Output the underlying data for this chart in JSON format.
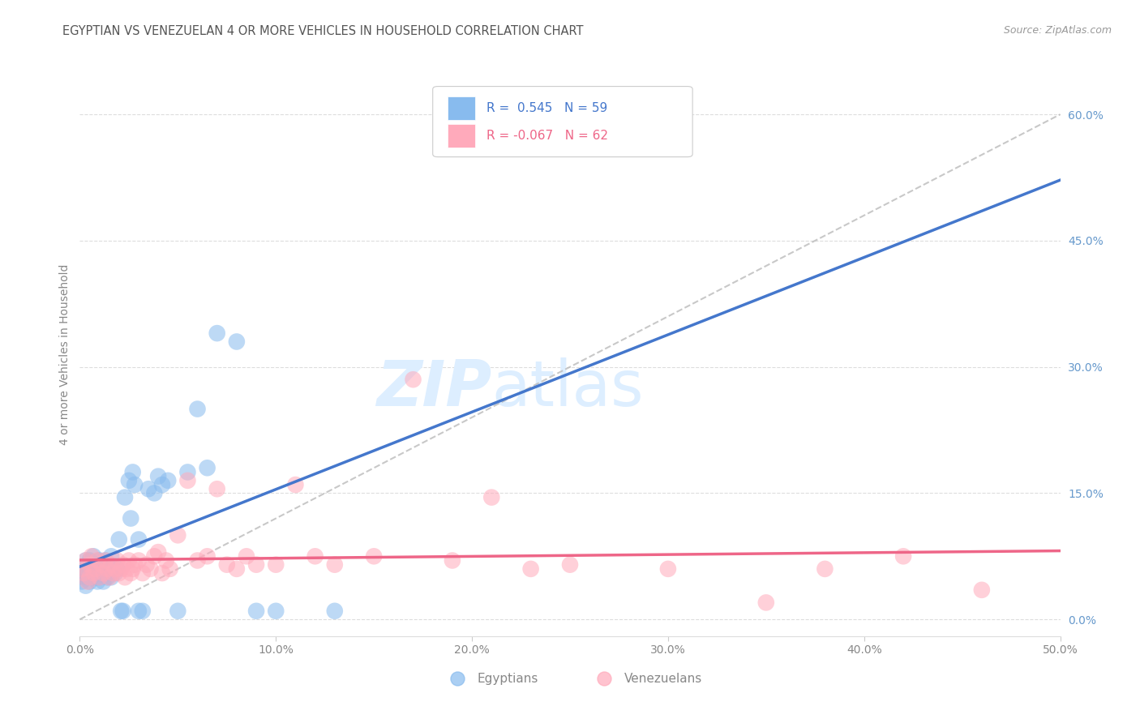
{
  "title": "EGYPTIAN VS VENEZUELAN 4 OR MORE VEHICLES IN HOUSEHOLD CORRELATION CHART",
  "source": "Source: ZipAtlas.com",
  "ylabel": "4 or more Vehicles in Household",
  "xlim": [
    0.0,
    0.5
  ],
  "ylim": [
    -0.02,
    0.65
  ],
  "ytick_positions": [
    0.0,
    0.15,
    0.3,
    0.45,
    0.6
  ],
  "ytick_labels_right": [
    "0.0%",
    "15.0%",
    "30.0%",
    "45.0%",
    "60.0%"
  ],
  "xtick_positions": [
    0.0,
    0.1,
    0.2,
    0.3,
    0.4,
    0.5
  ],
  "xtick_labels": [
    "0.0%",
    "10.0%",
    "20.0%",
    "30.0%",
    "40.0%",
    "50.0%"
  ],
  "legend_labels": [
    "Egyptians",
    "Venezuelans"
  ],
  "r_egyptian": 0.545,
  "n_egyptian": 59,
  "r_venezuelan": -0.067,
  "n_venezuelan": 62,
  "color_egyptian": "#88BBEE",
  "color_venezuelan": "#FFAABB",
  "line_color_egyptian": "#4477CC",
  "line_color_venezuelan": "#EE6688",
  "background_color": "#ffffff",
  "grid_color": "#dddddd",
  "title_color": "#555555",
  "axis_label_color": "#6699CC",
  "watermark_color": "#ddeeff",
  "egyptian_x": [
    0.001,
    0.002,
    0.002,
    0.003,
    0.003,
    0.003,
    0.004,
    0.004,
    0.005,
    0.005,
    0.005,
    0.006,
    0.006,
    0.007,
    0.007,
    0.008,
    0.008,
    0.009,
    0.009,
    0.01,
    0.01,
    0.011,
    0.011,
    0.012,
    0.012,
    0.013,
    0.014,
    0.014,
    0.015,
    0.016,
    0.016,
    0.017,
    0.018,
    0.019,
    0.02,
    0.021,
    0.022,
    0.023,
    0.025,
    0.026,
    0.027,
    0.028,
    0.03,
    0.03,
    0.032,
    0.035,
    0.038,
    0.04,
    0.042,
    0.045,
    0.05,
    0.055,
    0.06,
    0.065,
    0.07,
    0.08,
    0.09,
    0.1,
    0.13
  ],
  "egyptian_y": [
    0.045,
    0.06,
    0.05,
    0.04,
    0.055,
    0.07,
    0.05,
    0.065,
    0.045,
    0.06,
    0.07,
    0.055,
    0.05,
    0.06,
    0.075,
    0.05,
    0.065,
    0.045,
    0.06,
    0.05,
    0.07,
    0.055,
    0.065,
    0.045,
    0.06,
    0.07,
    0.055,
    0.05,
    0.065,
    0.05,
    0.075,
    0.06,
    0.055,
    0.06,
    0.095,
    0.01,
    0.01,
    0.145,
    0.165,
    0.12,
    0.175,
    0.16,
    0.01,
    0.095,
    0.01,
    0.155,
    0.15,
    0.17,
    0.16,
    0.165,
    0.01,
    0.175,
    0.25,
    0.18,
    0.34,
    0.33,
    0.01,
    0.01,
    0.01
  ],
  "venezuelan_x": [
    0.001,
    0.002,
    0.003,
    0.004,
    0.005,
    0.005,
    0.006,
    0.007,
    0.008,
    0.009,
    0.01,
    0.011,
    0.012,
    0.013,
    0.014,
    0.015,
    0.016,
    0.017,
    0.018,
    0.019,
    0.02,
    0.021,
    0.022,
    0.023,
    0.024,
    0.025,
    0.026,
    0.027,
    0.028,
    0.03,
    0.032,
    0.034,
    0.036,
    0.038,
    0.04,
    0.042,
    0.044,
    0.046,
    0.05,
    0.055,
    0.06,
    0.065,
    0.07,
    0.075,
    0.08,
    0.085,
    0.09,
    0.1,
    0.11,
    0.12,
    0.13,
    0.15,
    0.17,
    0.19,
    0.21,
    0.23,
    0.25,
    0.3,
    0.35,
    0.38,
    0.42,
    0.46
  ],
  "venezuelan_y": [
    0.06,
    0.055,
    0.07,
    0.045,
    0.065,
    0.05,
    0.075,
    0.055,
    0.06,
    0.07,
    0.05,
    0.065,
    0.055,
    0.07,
    0.06,
    0.05,
    0.065,
    0.055,
    0.06,
    0.07,
    0.055,
    0.06,
    0.065,
    0.05,
    0.06,
    0.07,
    0.055,
    0.06,
    0.065,
    0.07,
    0.055,
    0.065,
    0.06,
    0.075,
    0.08,
    0.055,
    0.07,
    0.06,
    0.1,
    0.165,
    0.07,
    0.075,
    0.155,
    0.065,
    0.06,
    0.075,
    0.065,
    0.065,
    0.16,
    0.075,
    0.065,
    0.075,
    0.285,
    0.07,
    0.145,
    0.06,
    0.065,
    0.06,
    0.02,
    0.06,
    0.075,
    0.035
  ]
}
